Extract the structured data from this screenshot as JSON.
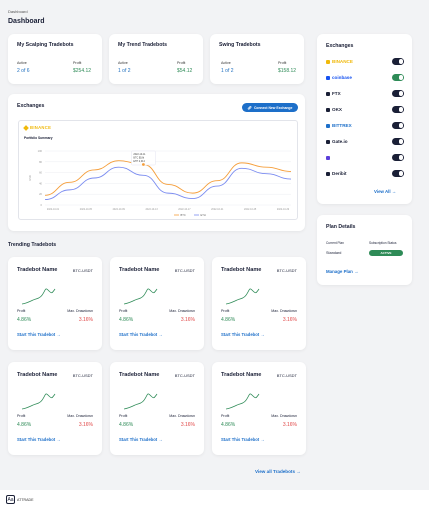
{
  "breadcrumb": "Dashboard",
  "page_title": "Dashboard",
  "summary_cards": [
    {
      "title": "My Scalping Tradebots",
      "active_label": "Active",
      "active_value": "2 of 6",
      "profit_label": "Profit",
      "profit_value": "$254.12"
    },
    {
      "title": "My Trend Tradebots",
      "active_label": "Active",
      "active_value": "1 of 2",
      "profit_label": "Profit",
      "profit_value": "$54.12"
    },
    {
      "title": "Swing Tradebots",
      "active_label": "Active",
      "active_value": "1 of 2",
      "profit_label": "Profit",
      "profit_value": "$158.12"
    }
  ],
  "exchanges_panel": {
    "title": "Exchanges",
    "connect_button": "Connect New Exchange",
    "exchange_logo": "BINANCE",
    "portfolio_label": "Portfolio Summary",
    "tooltip": [
      "2022-10-11",
      "BTC $18k",
      "ETH 2,014"
    ]
  },
  "chart_data": {
    "type": "line",
    "ylim": [
      0,
      100
    ],
    "y_ticks": [
      "100",
      "80",
      "60",
      "40",
      "20",
      "0"
    ],
    "x_ticks": [
      "2022-10-01",
      "2022-10-05",
      "2022-10-09",
      "2022-10-13",
      "2022-10-17",
      "2022-10-21",
      "2022-10-25",
      "2022-10-29"
    ],
    "ylabel": "USD",
    "series": [
      {
        "name": "BTC",
        "color": "#f59e3b",
        "values": [
          18,
          42,
          65,
          82,
          75,
          38,
          22,
          45,
          78,
          70,
          62
        ]
      },
      {
        "name": "ETH",
        "color": "#7b8cf0",
        "values": [
          10,
          28,
          50,
          70,
          55,
          22,
          12,
          35,
          68,
          58,
          48
        ]
      }
    ]
  },
  "trending": {
    "title": "Trending Tradebots",
    "card": {
      "name": "Tradebot Name",
      "pair": "BTC-USDT",
      "profit_label": "Profit",
      "drawdown_label": "Max. Drawdown",
      "profit_value": "4.86%",
      "drawdown_value": "3.16%",
      "start_label": "Start This Tradebot",
      "arrow": "→"
    },
    "view_all": "View all Tradebots →"
  },
  "exchange_list": {
    "title": "Exchanges",
    "items": [
      {
        "name": "BINANCE",
        "color": "#f0b90b",
        "on": false
      },
      {
        "name": "coinbase",
        "color": "#1652f0",
        "on": true
      },
      {
        "name": "FTX",
        "color": "#1a1f36",
        "on": false
      },
      {
        "name": "OKX",
        "color": "#1a1f36",
        "on": false
      },
      {
        "name": "BITTREX",
        "color": "#1d6fc9",
        "on": false
      },
      {
        "name": "Gate.io",
        "color": "#1a1f36",
        "on": false
      },
      {
        "name": "",
        "color": "#5b3fd9",
        "on": false
      },
      {
        "name": "Deribit",
        "color": "#1a1f36",
        "on": false
      }
    ],
    "view_all": "View All"
  },
  "plan": {
    "title": "Plan Details",
    "current_plan_label": "Current Plan",
    "current_plan_value": "Standard",
    "status_label": "Subscription Status",
    "status_value": "ACTIVE",
    "manage_label": "Manage Plan"
  },
  "footer": {
    "logo_mark": "Aa",
    "logo_text": "ATTRADE"
  }
}
